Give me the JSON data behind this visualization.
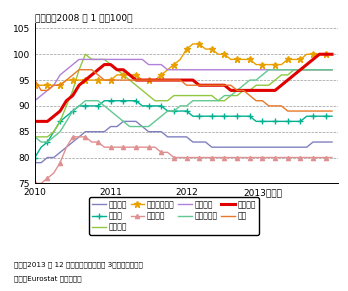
{
  "title": "（指数、2008 年 1 月＝100）",
  "xlim": [
    2010.0,
    2013.99
  ],
  "ylim": [
    75,
    106
  ],
  "yticks": [
    75,
    80,
    85,
    90,
    95,
    100,
    105
  ],
  "xtick_positions": [
    2010,
    2011,
    2012,
    2013
  ],
  "xtick_labels": [
    "2010",
    "2011",
    "2012",
    "2013（年）"
  ],
  "note1": "備考：2013 年 12 月までの数値。後方 3ヶ月移動平均。",
  "note2": "資料：Eurostat から作成。",
  "legend_entries": [
    {
      "label": "フランス",
      "color": "#8080c0",
      "lw": 1.0,
      "marker": null,
      "ms": 0,
      "markevery": 2
    },
    {
      "label": "ドイツ",
      "color": "#00b090",
      "lw": 1.0,
      "marker": "+",
      "ms": 4,
      "markevery": 2
    },
    {
      "label": "ギリシャ",
      "color": "#90c840",
      "lw": 1.0,
      "marker": null,
      "ms": 0,
      "markevery": 2
    },
    {
      "label": "アイルランド",
      "color": "#e8a000",
      "lw": 1.0,
      "marker": "*",
      "ms": 5,
      "markevery": 2
    },
    {
      "label": "イタリア",
      "color": "#e09090",
      "lw": 1.0,
      "marker": "^",
      "ms": 3,
      "markevery": 2
    },
    {
      "label": "オランダ",
      "color": "#b080d8",
      "lw": 1.0,
      "marker": null,
      "ms": 0,
      "markevery": 2
    },
    {
      "label": "ポルトガル",
      "color": "#60c890",
      "lw": 1.0,
      "marker": null,
      "ms": 0,
      "markevery": 2
    },
    {
      "label": "スペイン",
      "color": "#e00000",
      "lw": 2.2,
      "marker": null,
      "ms": 0,
      "markevery": 2
    },
    {
      "label": "英国",
      "color": "#e87828",
      "lw": 1.0,
      "marker": null,
      "ms": 0,
      "markevery": 2
    }
  ],
  "series": {
    "フランス": [
      79,
      79,
      80,
      80,
      81,
      82,
      83,
      84,
      85,
      85,
      85,
      85,
      86,
      86,
      87,
      87,
      87,
      86,
      85,
      85,
      85,
      84,
      84,
      84,
      84,
      83,
      83,
      83,
      82,
      82,
      82,
      82,
      82,
      82,
      82,
      82,
      82,
      82,
      82,
      82,
      82,
      82,
      82,
      82,
      83,
      83,
      83,
      83
    ],
    "ドイツ": [
      80,
      82,
      83,
      85,
      87,
      88,
      89,
      90,
      90,
      90,
      90,
      91,
      91,
      91,
      91,
      91,
      91,
      90,
      90,
      90,
      90,
      89,
      89,
      89,
      89,
      88,
      88,
      88,
      88,
      88,
      88,
      88,
      88,
      88,
      88,
      87,
      87,
      87,
      87,
      87,
      87,
      87,
      87,
      88,
      88,
      88,
      88,
      88
    ],
    "ギリシャ": [
      84,
      84,
      84,
      85,
      87,
      90,
      93,
      97,
      100,
      99,
      99,
      99,
      98,
      97,
      96,
      95,
      94,
      93,
      92,
      91,
      91,
      91,
      92,
      92,
      92,
      92,
      92,
      92,
      92,
      91,
      91,
      92,
      92,
      93,
      93,
      94,
      94,
      94,
      95,
      96,
      96,
      97,
      97,
      97,
      97,
      97,
      97,
      97
    ],
    "アイルランド": [
      94,
      94,
      94,
      94,
      94,
      95,
      95,
      95,
      95,
      95,
      95,
      95,
      95,
      96,
      96,
      96,
      96,
      95,
      95,
      95,
      96,
      97,
      98,
      99,
      101,
      102,
      102,
      101,
      101,
      100,
      100,
      99,
      99,
      99,
      99,
      98,
      98,
      98,
      98,
      98,
      99,
      99,
      99,
      100,
      100,
      100,
      100,
      100
    ],
    "イタリア": [
      75,
      75,
      76,
      77,
      79,
      82,
      84,
      84,
      84,
      83,
      83,
      82,
      82,
      82,
      82,
      82,
      82,
      82,
      82,
      82,
      81,
      81,
      80,
      80,
      80,
      80,
      80,
      80,
      80,
      80,
      80,
      80,
      80,
      80,
      80,
      80,
      80,
      80,
      80,
      80,
      80,
      80,
      80,
      80,
      80,
      80,
      80,
      80
    ],
    "オランダ": [
      91,
      92,
      93,
      94,
      96,
      97,
      98,
      99,
      99,
      99,
      99,
      99,
      99,
      99,
      99,
      99,
      99,
      99,
      98,
      98,
      98,
      97,
      97,
      97,
      97,
      97,
      97,
      97,
      97,
      97,
      97,
      97,
      97,
      97,
      97,
      97,
      97,
      97,
      97,
      97,
      97,
      97,
      97,
      97,
      97,
      97,
      97,
      97
    ],
    "ポルトガル": [
      84,
      83,
      83,
      84,
      85,
      87,
      89,
      90,
      91,
      91,
      91,
      90,
      89,
      88,
      87,
      86,
      86,
      86,
      86,
      87,
      88,
      89,
      89,
      90,
      90,
      91,
      91,
      91,
      91,
      91,
      92,
      92,
      93,
      94,
      95,
      95,
      96,
      97,
      97,
      97,
      97,
      97,
      97,
      97,
      97,
      97,
      97,
      97
    ],
    "スペイン": [
      87,
      87,
      87,
      88,
      89,
      91,
      92,
      94,
      95,
      96,
      97,
      98,
      98,
      97,
      97,
      96,
      95,
      95,
      95,
      95,
      95,
      95,
      95,
      95,
      95,
      95,
      94,
      94,
      94,
      94,
      94,
      93,
      93,
      93,
      93,
      93,
      93,
      93,
      93,
      94,
      95,
      96,
      97,
      98,
      99,
      100,
      100,
      100
    ],
    "英国": [
      95,
      93,
      93,
      94,
      94,
      95,
      96,
      97,
      97,
      97,
      96,
      95,
      95,
      95,
      95,
      95,
      95,
      95,
      95,
      95,
      95,
      95,
      95,
      95,
      94,
      94,
      94,
      94,
      94,
      94,
      94,
      94,
      93,
      93,
      92,
      91,
      91,
      90,
      90,
      90,
      89,
      89,
      89,
      89,
      89,
      89,
      89,
      89
    ]
  }
}
